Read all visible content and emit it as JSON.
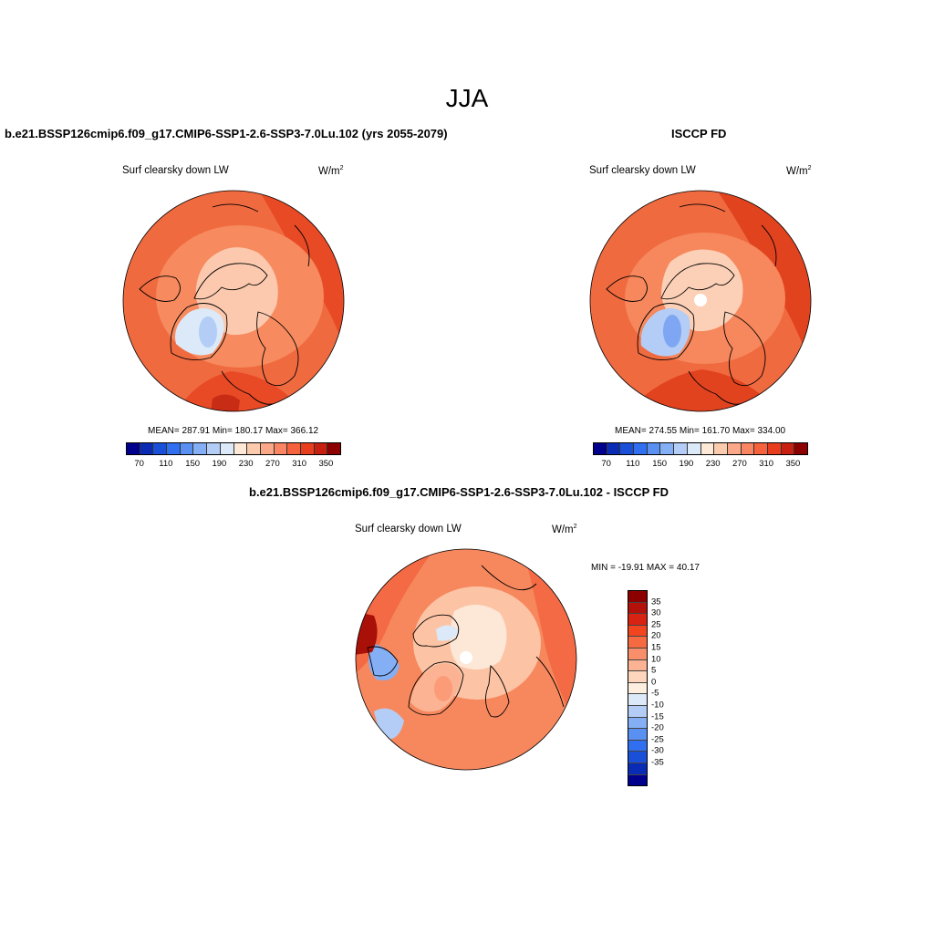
{
  "season": "JJA",
  "panel_a": {
    "title": "b.e21.BSSP126cmip6.f09_g17.CMIP6-SSP1-2.6-SSP3-7.0Lu.102 (yrs 2055-2079)",
    "subtitle": "Surf clearsky down LW",
    "units": "W/m",
    "units_exp": "2",
    "stats": "MEAN= 287.91  Min= 180.17  Max= 366.12"
  },
  "panel_b": {
    "title": "ISCCP FD",
    "subtitle": "Surf clearsky down LW",
    "units": "W/m",
    "units_exp": "2",
    "stats": "MEAN= 274.55  Min= 161.70  Max= 334.00"
  },
  "panel_diff": {
    "title": "b.e21.BSSP126cmip6.f09_g17.CMIP6-SSP1-2.6-SSP3-7.0Lu.102 - ISCCP FD",
    "subtitle": "Surf clearsky down LW",
    "units": "W/m",
    "units_exp": "2",
    "minmax": "MIN = -19.91 MAX =  40.17"
  },
  "abs_colorbar": {
    "colors": [
      "#00008c",
      "#0a2cb4",
      "#1a4fd8",
      "#2f6ff0",
      "#5990f2",
      "#84aff5",
      "#b3cdf6",
      "#dce9f8",
      "#fde9d6",
      "#fccbad",
      "#fba889",
      "#f98562",
      "#f6623d",
      "#e93e1e",
      "#c71f10",
      "#8c0000"
    ],
    "tick_labels": [
      "70",
      "110",
      "150",
      "190",
      "230",
      "270",
      "310",
      "350"
    ]
  },
  "diff_colorbar": {
    "colors": [
      "#8c0000",
      "#b3110a",
      "#d92312",
      "#f0451f",
      "#f56a40",
      "#f88f6a",
      "#fbb393",
      "#fdd6bd",
      "#fdefe0",
      "#dce9f8",
      "#b3cdf6",
      "#84aff5",
      "#5990f2",
      "#2f6ff0",
      "#1a4fd8",
      "#0a2cb4",
      "#00008c"
    ],
    "tick_labels": [
      "35",
      "30",
      "25",
      "20",
      "15",
      "10",
      "5",
      "0",
      "-5",
      "-10",
      "-15",
      "-20",
      "-25",
      "-30",
      "-35"
    ]
  },
  "map_colors": {
    "a": {
      "base": "#f06a40",
      "outer": "#e84a26",
      "ring": "#f78a5e",
      "arctic": "#fcc9ae",
      "greenland": "#dce9f8",
      "gl_core": "#b3cdf6",
      "hot": "#c82c14"
    },
    "b": {
      "base": "#f06a40",
      "outer": "#e2431f",
      "ring": "#f7875c",
      "arctic": "#fcd0b7",
      "greenland": "#b3cdf6",
      "gl_core": "#7ea6f2",
      "hot": "#c82c14"
    },
    "d": {
      "base": "#f7885e",
      "outer": "#f36a44",
      "ring": "#fcc4a5",
      "arctic": "#fde7d6",
      "greenland": "#fbb393",
      "gl_core": "#fb9b78",
      "hot": "#a81008"
    }
  }
}
